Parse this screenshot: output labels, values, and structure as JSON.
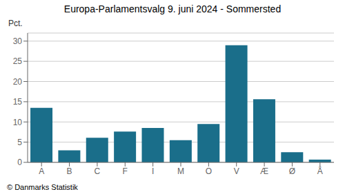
{
  "chart_data": {
    "type": "bar",
    "title": "Europa-Parlamentsvalg 9. juni 2024 - Sommersted",
    "ylabel": "Pct.",
    "annotations": [
      "© Danmarks Statistik"
    ],
    "categories": [
      "A",
      "B",
      "C",
      "F",
      "I",
      "M",
      "O",
      "V",
      "Æ",
      "Ø",
      "Å"
    ],
    "values": [
      13.5,
      3.0,
      6.1,
      7.6,
      8.5,
      5.5,
      9.5,
      29.0,
      15.6,
      2.5,
      0.7
    ],
    "color": "#1a6e8a",
    "ylim": [
      0,
      32
    ],
    "yticks": [
      0,
      5,
      10,
      15,
      20,
      25,
      30
    ],
    "grid": true
  }
}
